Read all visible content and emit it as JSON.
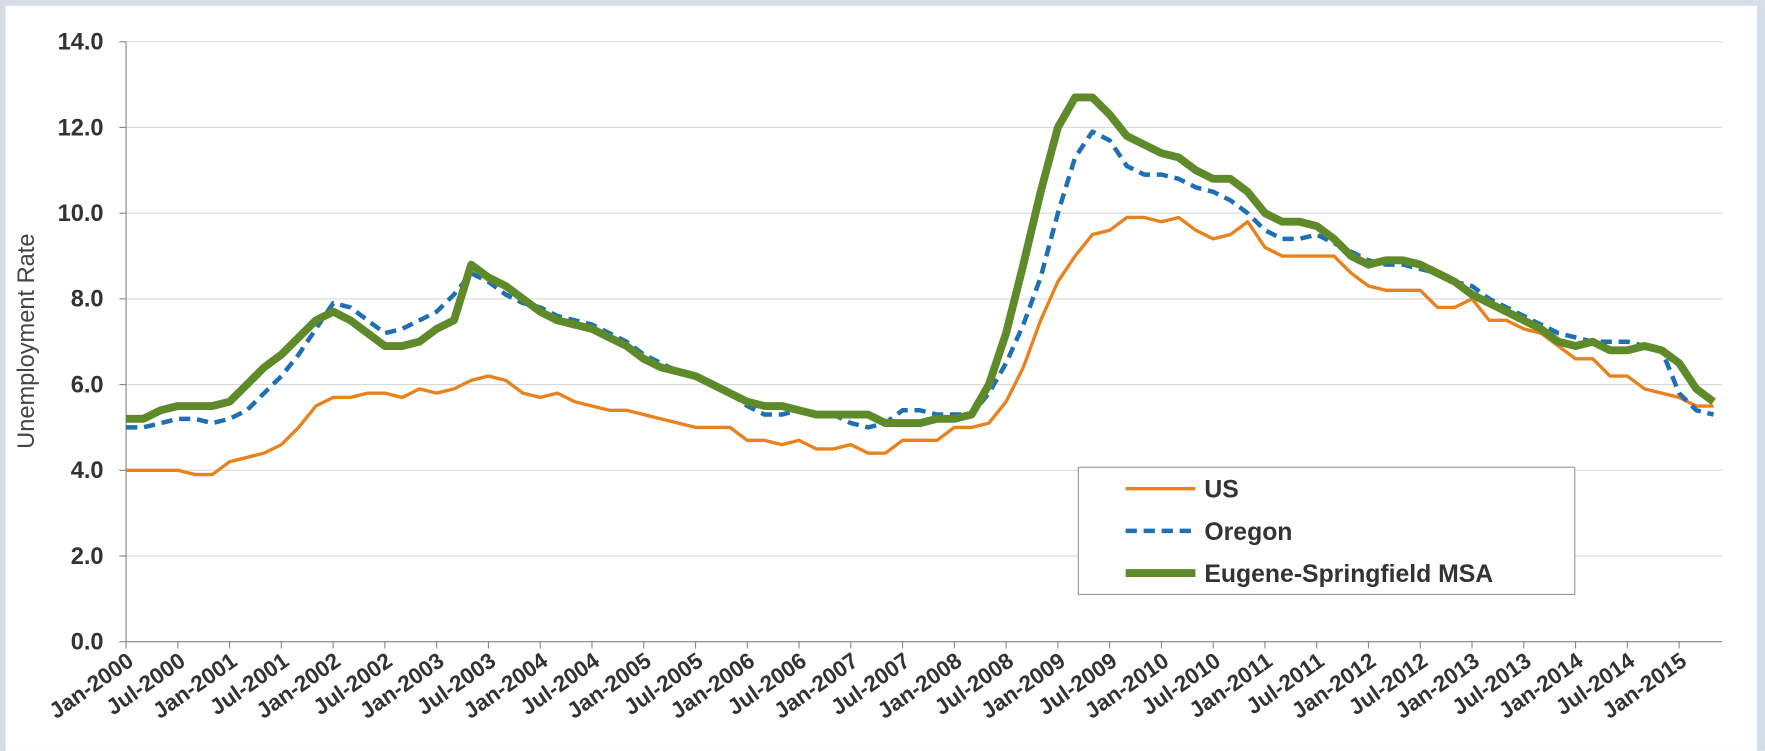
{
  "chart_data": {
    "type": "line",
    "y_label": "Unemployment Rate",
    "categories": [
      "Jan-2000",
      null,
      null,
      "Jul-2000",
      null,
      null,
      "Jan-2001",
      null,
      null,
      "Jul-2001",
      null,
      null,
      "Jan-2002",
      null,
      null,
      "Jul-2002",
      null,
      null,
      "Jan-2003",
      null,
      null,
      "Jul-2003",
      null,
      null,
      "Jan-2004",
      null,
      null,
      "Jul-2004",
      null,
      null,
      "Jan-2005",
      null,
      null,
      "Jul-2005",
      null,
      null,
      "Jan-2006",
      null,
      null,
      "Jul-2006",
      null,
      null,
      "Jan-2007",
      null,
      null,
      "Jul-2007",
      null,
      null,
      "Jan-2008",
      null,
      null,
      "Jul-2008",
      null,
      null,
      "Jan-2009",
      null,
      null,
      "Jul-2009",
      null,
      null,
      "Jan-2010",
      null,
      null,
      "Jul-2010",
      null,
      null,
      "Jan-2011",
      null,
      null,
      "Jul-2011",
      null,
      null,
      "Jan-2012",
      null,
      null,
      "Jul-2012",
      null,
      null,
      "Jan-2013",
      null,
      null,
      "Jul-2013",
      null,
      null,
      "Jan-2014",
      null,
      null,
      "Jul-2014",
      null,
      null,
      "Jan-2015",
      null,
      null
    ],
    "series": [
      {
        "name": "US",
        "color": "#e8821e",
        "line_style": "solid",
        "values": [
          4.0,
          4.0,
          4.0,
          4.0,
          3.9,
          3.9,
          4.2,
          4.3,
          4.4,
          4.6,
          5.0,
          5.5,
          5.7,
          5.7,
          5.8,
          5.8,
          5.7,
          5.9,
          5.8,
          5.9,
          6.1,
          6.2,
          6.1,
          5.8,
          5.7,
          5.8,
          5.6,
          5.5,
          5.4,
          5.4,
          5.3,
          5.2,
          5.1,
          5.0,
          5.0,
          5.0,
          4.7,
          4.7,
          4.6,
          4.7,
          4.5,
          4.5,
          4.6,
          4.4,
          4.4,
          4.7,
          4.7,
          4.7,
          5.0,
          5.0,
          5.1,
          5.6,
          6.4,
          7.5,
          8.4,
          9.0,
          9.5,
          9.6,
          9.9,
          9.9,
          9.8,
          9.9,
          9.6,
          9.4,
          9.5,
          9.8,
          9.2,
          9.0,
          9.0,
          9.0,
          9.0,
          8.6,
          8.3,
          8.2,
          8.2,
          8.2,
          7.8,
          7.8,
          8.0,
          7.5,
          7.5,
          7.3,
          7.2,
          6.9,
          6.6,
          6.6,
          6.2,
          6.2,
          5.9,
          5.8,
          5.7,
          5.5,
          5.5
        ]
      },
      {
        "name": "Oregon",
        "color": "#1f6fb4",
        "line_style": "dashed",
        "values": [
          5.0,
          5.0,
          5.1,
          5.2,
          5.2,
          5.1,
          5.2,
          5.4,
          5.8,
          6.2,
          6.7,
          7.3,
          7.9,
          7.8,
          7.5,
          7.2,
          7.3,
          7.5,
          7.7,
          8.1,
          8.6,
          8.4,
          8.1,
          7.9,
          7.8,
          7.6,
          7.5,
          7.4,
          7.2,
          7.0,
          6.7,
          6.5,
          6.3,
          6.2,
          6.0,
          5.8,
          5.5,
          5.3,
          5.3,
          5.4,
          5.3,
          5.3,
          5.1,
          5.0,
          5.1,
          5.4,
          5.4,
          5.3,
          5.3,
          5.3,
          5.8,
          6.5,
          7.4,
          8.5,
          10.0,
          11.3,
          11.9,
          11.7,
          11.1,
          10.9,
          10.9,
          10.8,
          10.6,
          10.5,
          10.3,
          10.0,
          9.6,
          9.4,
          9.4,
          9.5,
          9.3,
          9.1,
          8.9,
          8.8,
          8.8,
          8.7,
          8.6,
          8.4,
          8.3,
          8.0,
          7.8,
          7.6,
          7.4,
          7.2,
          7.1,
          7.0,
          7.0,
          7.0,
          6.9,
          6.8,
          5.8,
          5.4,
          5.3
        ]
      },
      {
        "name": "Eugene-Springfield MSA",
        "color": "#5f8a2a",
        "line_style": "bold",
        "values": [
          5.2,
          5.2,
          5.4,
          5.5,
          5.5,
          5.5,
          5.6,
          6.0,
          6.4,
          6.7,
          7.1,
          7.5,
          7.7,
          7.5,
          7.2,
          6.9,
          6.9,
          7.0,
          7.3,
          7.5,
          8.8,
          8.5,
          8.3,
          8.0,
          7.7,
          7.5,
          7.4,
          7.3,
          7.1,
          6.9,
          6.6,
          6.4,
          6.3,
          6.2,
          6.0,
          5.8,
          5.6,
          5.5,
          5.5,
          5.4,
          5.3,
          5.3,
          5.3,
          5.3,
          5.1,
          5.1,
          5.1,
          5.2,
          5.2,
          5.3,
          6.0,
          7.2,
          8.8,
          10.5,
          12.0,
          12.7,
          12.7,
          12.3,
          11.8,
          11.6,
          11.4,
          11.3,
          11.0,
          10.8,
          10.8,
          10.5,
          10.0,
          9.8,
          9.8,
          9.7,
          9.4,
          9.0,
          8.8,
          8.9,
          8.9,
          8.8,
          8.6,
          8.4,
          8.1,
          7.9,
          7.7,
          7.5,
          7.3,
          7.0,
          6.9,
          7.0,
          6.8,
          6.8,
          6.9,
          6.8,
          6.5,
          5.9,
          5.6
        ]
      }
    ],
    "ylim": [
      0,
      14
    ],
    "yticks": [
      {
        "value": 0,
        "label": "0.0"
      },
      {
        "value": 2,
        "label": "2.0"
      },
      {
        "value": 4,
        "label": "4.0"
      },
      {
        "value": 6,
        "label": "6.0"
      },
      {
        "value": 8,
        "label": "8.0"
      },
      {
        "value": 10,
        "label": "10.0"
      },
      {
        "value": 12,
        "label": "12.0"
      },
      {
        "value": 14,
        "label": "14.0"
      }
    ],
    "grid": true,
    "legend": "lower right"
  }
}
